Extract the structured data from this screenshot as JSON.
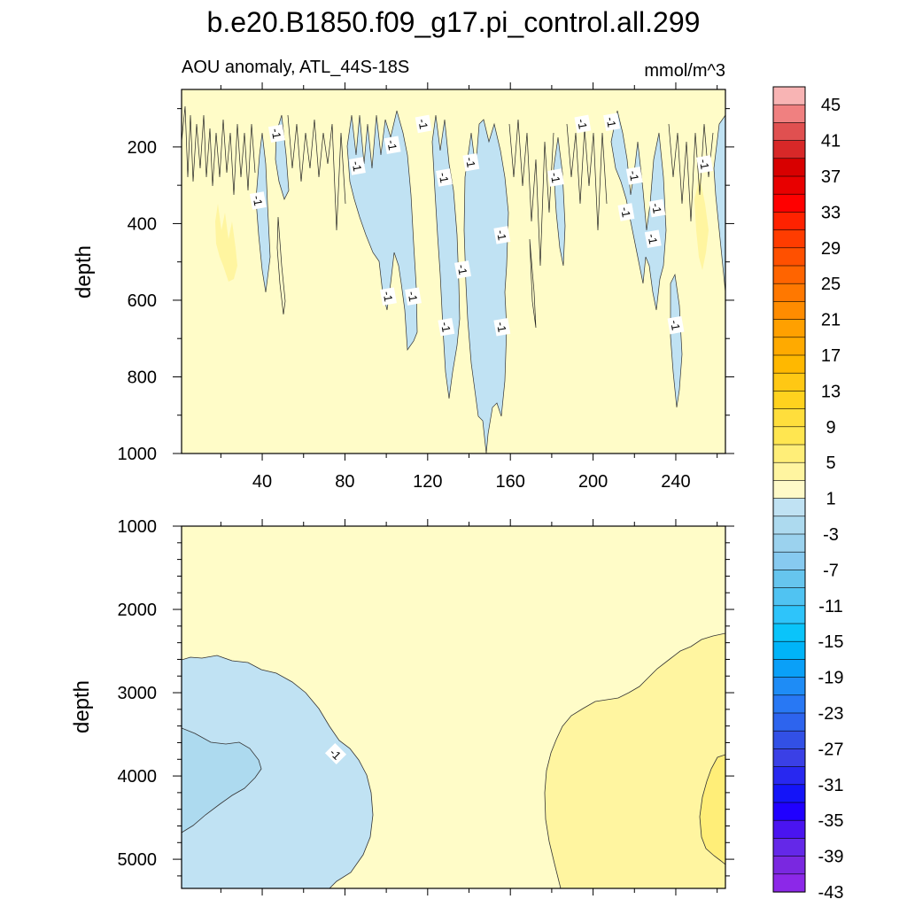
{
  "title": "b.e20.B1850.f09_g17.pi_control.all.299",
  "chart_data": [
    {
      "type": "contour",
      "panel": "upper",
      "subtitle_left": "AOU anomaly, ATL_44S-18S",
      "subtitle_right": "mmol/m^3",
      "ylabel": "depth",
      "xlabel": "",
      "xlim": [
        1,
        264
      ],
      "ylim": [
        1000,
        50
      ],
      "x_ticks": [
        "40",
        "80",
        "120",
        "160",
        "200",
        "240"
      ],
      "y_ticks": [
        "200",
        "400",
        "600",
        "800",
        "1000"
      ],
      "contour_labels": [
        "-1",
        "-1",
        "-1",
        "-1",
        "-1",
        "-1",
        "-1",
        "-1",
        "-1",
        "-1",
        "-1",
        "-1",
        "-1",
        "-1",
        "-1",
        "-1",
        "-1",
        "-1",
        "-1",
        "-1",
        "-1",
        "-1"
      ]
    },
    {
      "type": "contour",
      "panel": "lower",
      "ylabel": "depth",
      "xlim": [
        1,
        264
      ],
      "ylim": [
        5350,
        1000
      ],
      "y_ticks": [
        "1000",
        "2000",
        "3000",
        "4000",
        "5000"
      ],
      "contour_labels": [
        "-1"
      ]
    }
  ],
  "colorbar": {
    "labels": [
      "45",
      "41",
      "37",
      "33",
      "29",
      "25",
      "21",
      "17",
      "13",
      "9",
      "5",
      "1",
      "-3",
      "-7",
      "-11",
      "-15",
      "-19",
      "-23",
      "-27",
      "-31",
      "-35",
      "-39",
      "-43"
    ],
    "colors": [
      "#f8b4b4",
      "#f08080",
      "#e05050",
      "#d82828",
      "#d80000",
      "#e80000",
      "#ff0000",
      "#ff2200",
      "#ff3c00",
      "#ff5000",
      "#ff6400",
      "#ff7800",
      "#ff8c00",
      "#ffa000",
      "#ffaa00",
      "#ffb800",
      "#ffc814",
      "#ffd21e",
      "#ffde3c",
      "#ffe650",
      "#ffee78",
      "#fff5a0",
      "#fffac8",
      "#c0e2f3",
      "#addaef",
      "#9bd2ee",
      "#87caf0",
      "#66c5ee",
      "#50c3f2",
      "#2ec4fa",
      "#0ac4fa",
      "#00b4f8",
      "#0aa0f8",
      "#1e8cf6",
      "#2878f4",
      "#2d64ee",
      "#3250e6",
      "#3a40e6",
      "#2828f0",
      "#1414f8",
      "#2000ff",
      "#4a14f0",
      "#6428e8",
      "#7a28e0",
      "#8c28e8"
    ]
  },
  "colors": {
    "yellow_light": "#fffcc8",
    "yellow_mid": "#fff5a0",
    "yellow_deep": "#ffee78",
    "blue_light": "#c0e2f3",
    "blue_mid": "#addaef"
  }
}
